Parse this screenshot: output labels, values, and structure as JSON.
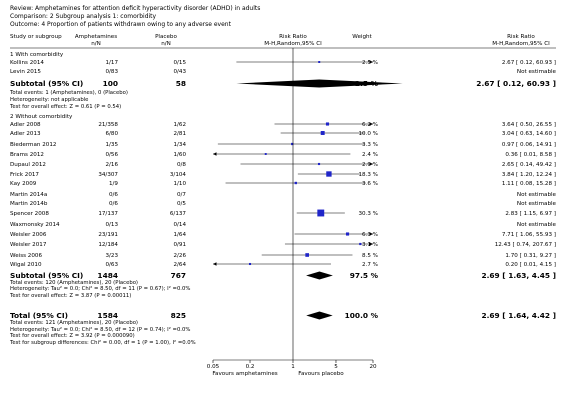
{
  "header": {
    "review": "Review:   Amphetamines for attention deficit hyperactivity disorder (ADHD) in adults",
    "comparison": "Comparison:   2 Subgroup analysis 1: comorbidity",
    "outcome": "Outcome:   4 Proportion of patients withdrawn owing to any adverse event"
  },
  "columns": {
    "study": "Study or subgroup",
    "exp": "Amphetamines",
    "exp_sub": "n/N",
    "ctl": "Placebo",
    "ctl_sub": "n/N",
    "rr": "Risk Ratio",
    "rr_sub": "M-H,Random,95% CI",
    "weight": "Weight",
    "rr2": "Risk Ratio",
    "rr2_sub": "M-H,Random,95% CI"
  },
  "chart_data": {
    "type": "forest",
    "scale": "log",
    "xlim": [
      0.05,
      20
    ],
    "ticks": [
      "0.05",
      "0.2",
      "1",
      "5",
      "20"
    ],
    "favours_left": "Favours amphetamines",
    "favours_right": "Favours placebo",
    "subgroups": [
      {
        "title": "1 With comorbidity",
        "studies": [
          {
            "name": "Kollins 2014",
            "exp": "1/17",
            "ctl": "0/15",
            "weight": "2.5 %",
            "rr_text": "2.67 [ 0.12, 60.93 ]",
            "est": 2.67,
            "lo": 0.12,
            "hi": 60.93,
            "w": 2.5
          },
          {
            "name": "Levin 2015",
            "exp": "0/83",
            "ctl": "0/43",
            "weight": "",
            "rr_text": "Not estimable",
            "est": null,
            "lo": null,
            "hi": null,
            "w": 0
          }
        ],
        "subtotal": {
          "label": "Subtotal (95% CI)",
          "exp": "100",
          "ctl": "58",
          "weight": "2.5 %",
          "rr_text": "2.67 [ 0.12, 60.93 ]",
          "est": 2.67,
          "lo": 0.12,
          "hi": 60.93
        },
        "notes": [
          "Total events: 1 (Amphetamines), 0 (Placebo)",
          "Heterogeneity: not applicable",
          "Test for overall effect: Z = 0.61 (P = 0.54)"
        ]
      },
      {
        "title": "2 Without comorbidity",
        "studies": [
          {
            "name": "Adler 2008",
            "exp": "21/358",
            "ctl": "1/62",
            "weight": "6.2 %",
            "rr_text": "3.64 [ 0.50, 26.55 ]",
            "est": 3.64,
            "lo": 0.5,
            "hi": 26.55,
            "w": 6.2
          },
          {
            "name": "Adler 2013",
            "exp": "6/80",
            "ctl": "2/81",
            "weight": "10.0 %",
            "rr_text": "3.04 [ 0.63, 14.60 ]",
            "est": 3.04,
            "lo": 0.63,
            "hi": 14.6,
            "w": 10.0
          },
          {
            "name": "Biederman 2012",
            "exp": "1/35",
            "ctl": "1/34",
            "weight": "3.3 %",
            "rr_text": "0.97 [ 0.06, 14.91 ]",
            "est": 0.97,
            "lo": 0.06,
            "hi": 14.91,
            "w": 3.3
          },
          {
            "name": "Brams 2012",
            "exp": "0/56",
            "ctl": "1/60",
            "weight": "2.4 %",
            "rr_text": "0.36 [ 0.01, 8.58 ]",
            "est": 0.36,
            "lo": 0.01,
            "hi": 8.58,
            "w": 2.4
          },
          {
            "name": "Dupaul 2012",
            "exp": "2/16",
            "ctl": "0/8",
            "weight": "2.9 %",
            "rr_text": "2.65 [ 0.14, 49.42 ]",
            "est": 2.65,
            "lo": 0.14,
            "hi": 49.42,
            "w": 2.9
          },
          {
            "name": "Frick 2017",
            "exp": "34/307",
            "ctl": "3/104",
            "weight": "18.3 %",
            "rr_text": "3.84 [ 1.20, 12.24 ]",
            "est": 3.84,
            "lo": 1.2,
            "hi": 12.24,
            "w": 18.3
          },
          {
            "name": "Kay 2009",
            "exp": "1/9",
            "ctl": "1/10",
            "weight": "3.6 %",
            "rr_text": "1.11 [ 0.08, 15.28 ]",
            "est": 1.11,
            "lo": 0.08,
            "hi": 15.28,
            "w": 3.6
          },
          {
            "name": "Martin 2014a",
            "exp": "0/6",
            "ctl": "0/7",
            "weight": "",
            "rr_text": "Not estimable",
            "est": null,
            "lo": null,
            "hi": null,
            "w": 0
          },
          {
            "name": "Martin 2014b",
            "exp": "0/6",
            "ctl": "0/5",
            "weight": "",
            "rr_text": "Not estimable",
            "est": null,
            "lo": null,
            "hi": null,
            "w": 0
          },
          {
            "name": "Spencer 2008",
            "exp": "17/137",
            "ctl": "6/137",
            "weight": "30.3 %",
            "rr_text": "2.83 [ 1.15, 6.97 ]",
            "est": 2.83,
            "lo": 1.15,
            "hi": 6.97,
            "w": 30.3
          },
          {
            "name": "Waxmonsky 2014",
            "exp": "0/13",
            "ctl": "0/14",
            "weight": "",
            "rr_text": "Not estimable",
            "est": null,
            "lo": null,
            "hi": null,
            "w": 0
          },
          {
            "name": "Weisler 2006",
            "exp": "23/191",
            "ctl": "1/64",
            "weight": "6.3 %",
            "rr_text": "7.71 [ 1.06, 55.93 ]",
            "est": 7.71,
            "lo": 1.06,
            "hi": 55.93,
            "w": 6.3
          },
          {
            "name": "Weisler 2017",
            "exp": "12/184",
            "ctl": "0/91",
            "weight": "3.1 %",
            "rr_text": "12.43 [ 0.74, 207.67 ]",
            "est": 12.43,
            "lo": 0.74,
            "hi": 207.67,
            "w": 3.1
          },
          {
            "name": "Weiss 2006",
            "exp": "3/23",
            "ctl": "2/26",
            "weight": "8.5 %",
            "rr_text": "1.70 [ 0.31, 9.27 ]",
            "est": 1.7,
            "lo": 0.31,
            "hi": 9.27,
            "w": 8.5
          },
          {
            "name": "Wigal 2010",
            "exp": "0/63",
            "ctl": "2/64",
            "weight": "2.7 %",
            "rr_text": "0.20 [ 0.01, 4.15 ]",
            "est": 0.2,
            "lo": 0.01,
            "hi": 4.15,
            "w": 2.7
          }
        ],
        "subtotal": {
          "label": "Subtotal (95% CI)",
          "exp": "1484",
          "ctl": "767",
          "weight": "97.5 %",
          "rr_text": "2.69 [ 1.63, 4.45 ]",
          "est": 2.69,
          "lo": 1.63,
          "hi": 4.45
        },
        "notes": [
          "Total events: 120 (Amphetamines), 20 (Placebo)",
          "Heterogeneity: Tau² = 0.0; Chi² = 8.50, df = 11 (P = 0.67); I² =0.0%",
          "Test for overall effect: Z = 3.87 (P = 0.00011)"
        ]
      }
    ],
    "total": {
      "label": "Total (95% CI)",
      "exp": "1584",
      "ctl": "825",
      "weight": "100.0 %",
      "rr_text": "2.69 [ 1.64, 4.42 ]",
      "est": 2.69,
      "lo": 1.64,
      "hi": 4.42
    },
    "total_notes": [
      "Total events: 121 (Amphetamines), 20 (Placebo)",
      "Heterogeneity: Tau² = 0.0; Chi² = 8.50, df = 12 (P = 0.74); I² =0.0%",
      "Test for overall effect: Z = 3.92 (P = 0.000090)",
      "Test for subgroup differences: Chi² = 0.00, df = 1 (P = 1.00), I² =0.0%"
    ]
  }
}
